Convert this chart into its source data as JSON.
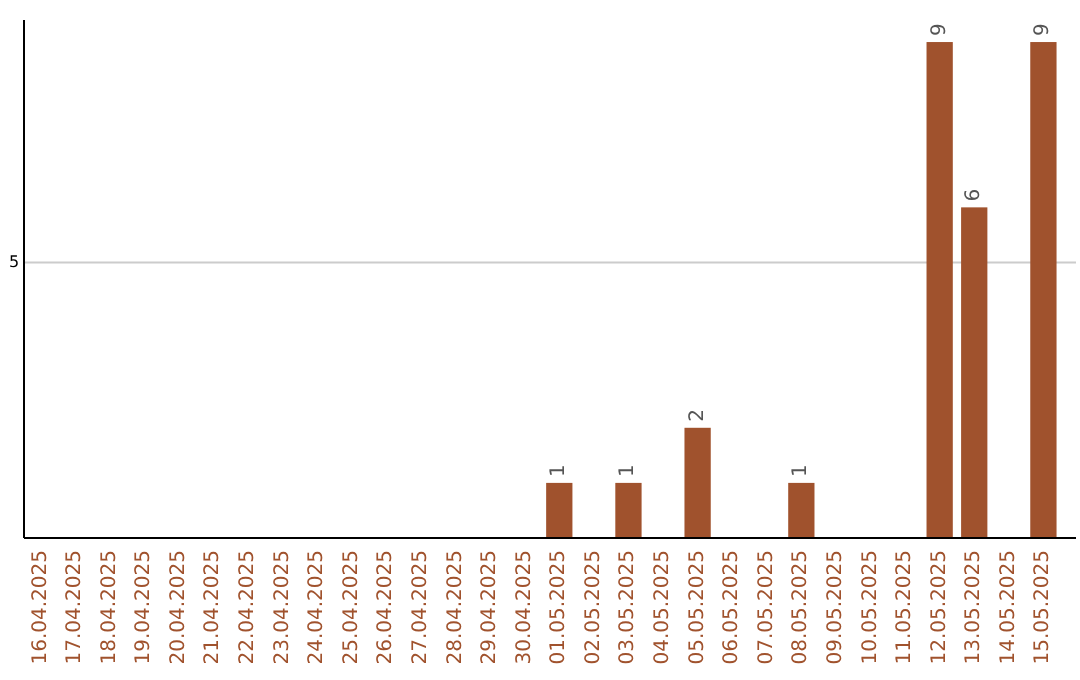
{
  "chart_data": {
    "type": "bar",
    "categories": [
      "16.04.2025",
      "17.04.2025",
      "18.04.2025",
      "19.04.2025",
      "20.04.2025",
      "21.04.2025",
      "22.04.2025",
      "23.04.2025",
      "24.04.2025",
      "25.04.2025",
      "26.04.2025",
      "27.04.2025",
      "28.04.2025",
      "29.04.2025",
      "30.04.2025",
      "01.05.2025",
      "02.05.2025",
      "03.05.2025",
      "04.05.2025",
      "05.05.2025",
      "06.05.2025",
      "07.05.2025",
      "08.05.2025",
      "09.05.2025",
      "10.05.2025",
      "11.05.2025",
      "12.05.2025",
      "13.05.2025",
      "14.05.2025",
      "15.05.2025"
    ],
    "values": [
      null,
      null,
      null,
      null,
      null,
      null,
      null,
      null,
      null,
      null,
      null,
      null,
      null,
      null,
      null,
      1,
      null,
      1,
      null,
      2,
      null,
      null,
      1,
      null,
      null,
      null,
      9,
      6,
      null,
      9
    ],
    "data_labels": true,
    "color": "#a0522d",
    "ylim": [
      0,
      9.4
    ],
    "yticks": [
      {
        "value": 0,
        "label": null
      },
      5
    ],
    "grid": "y"
  }
}
